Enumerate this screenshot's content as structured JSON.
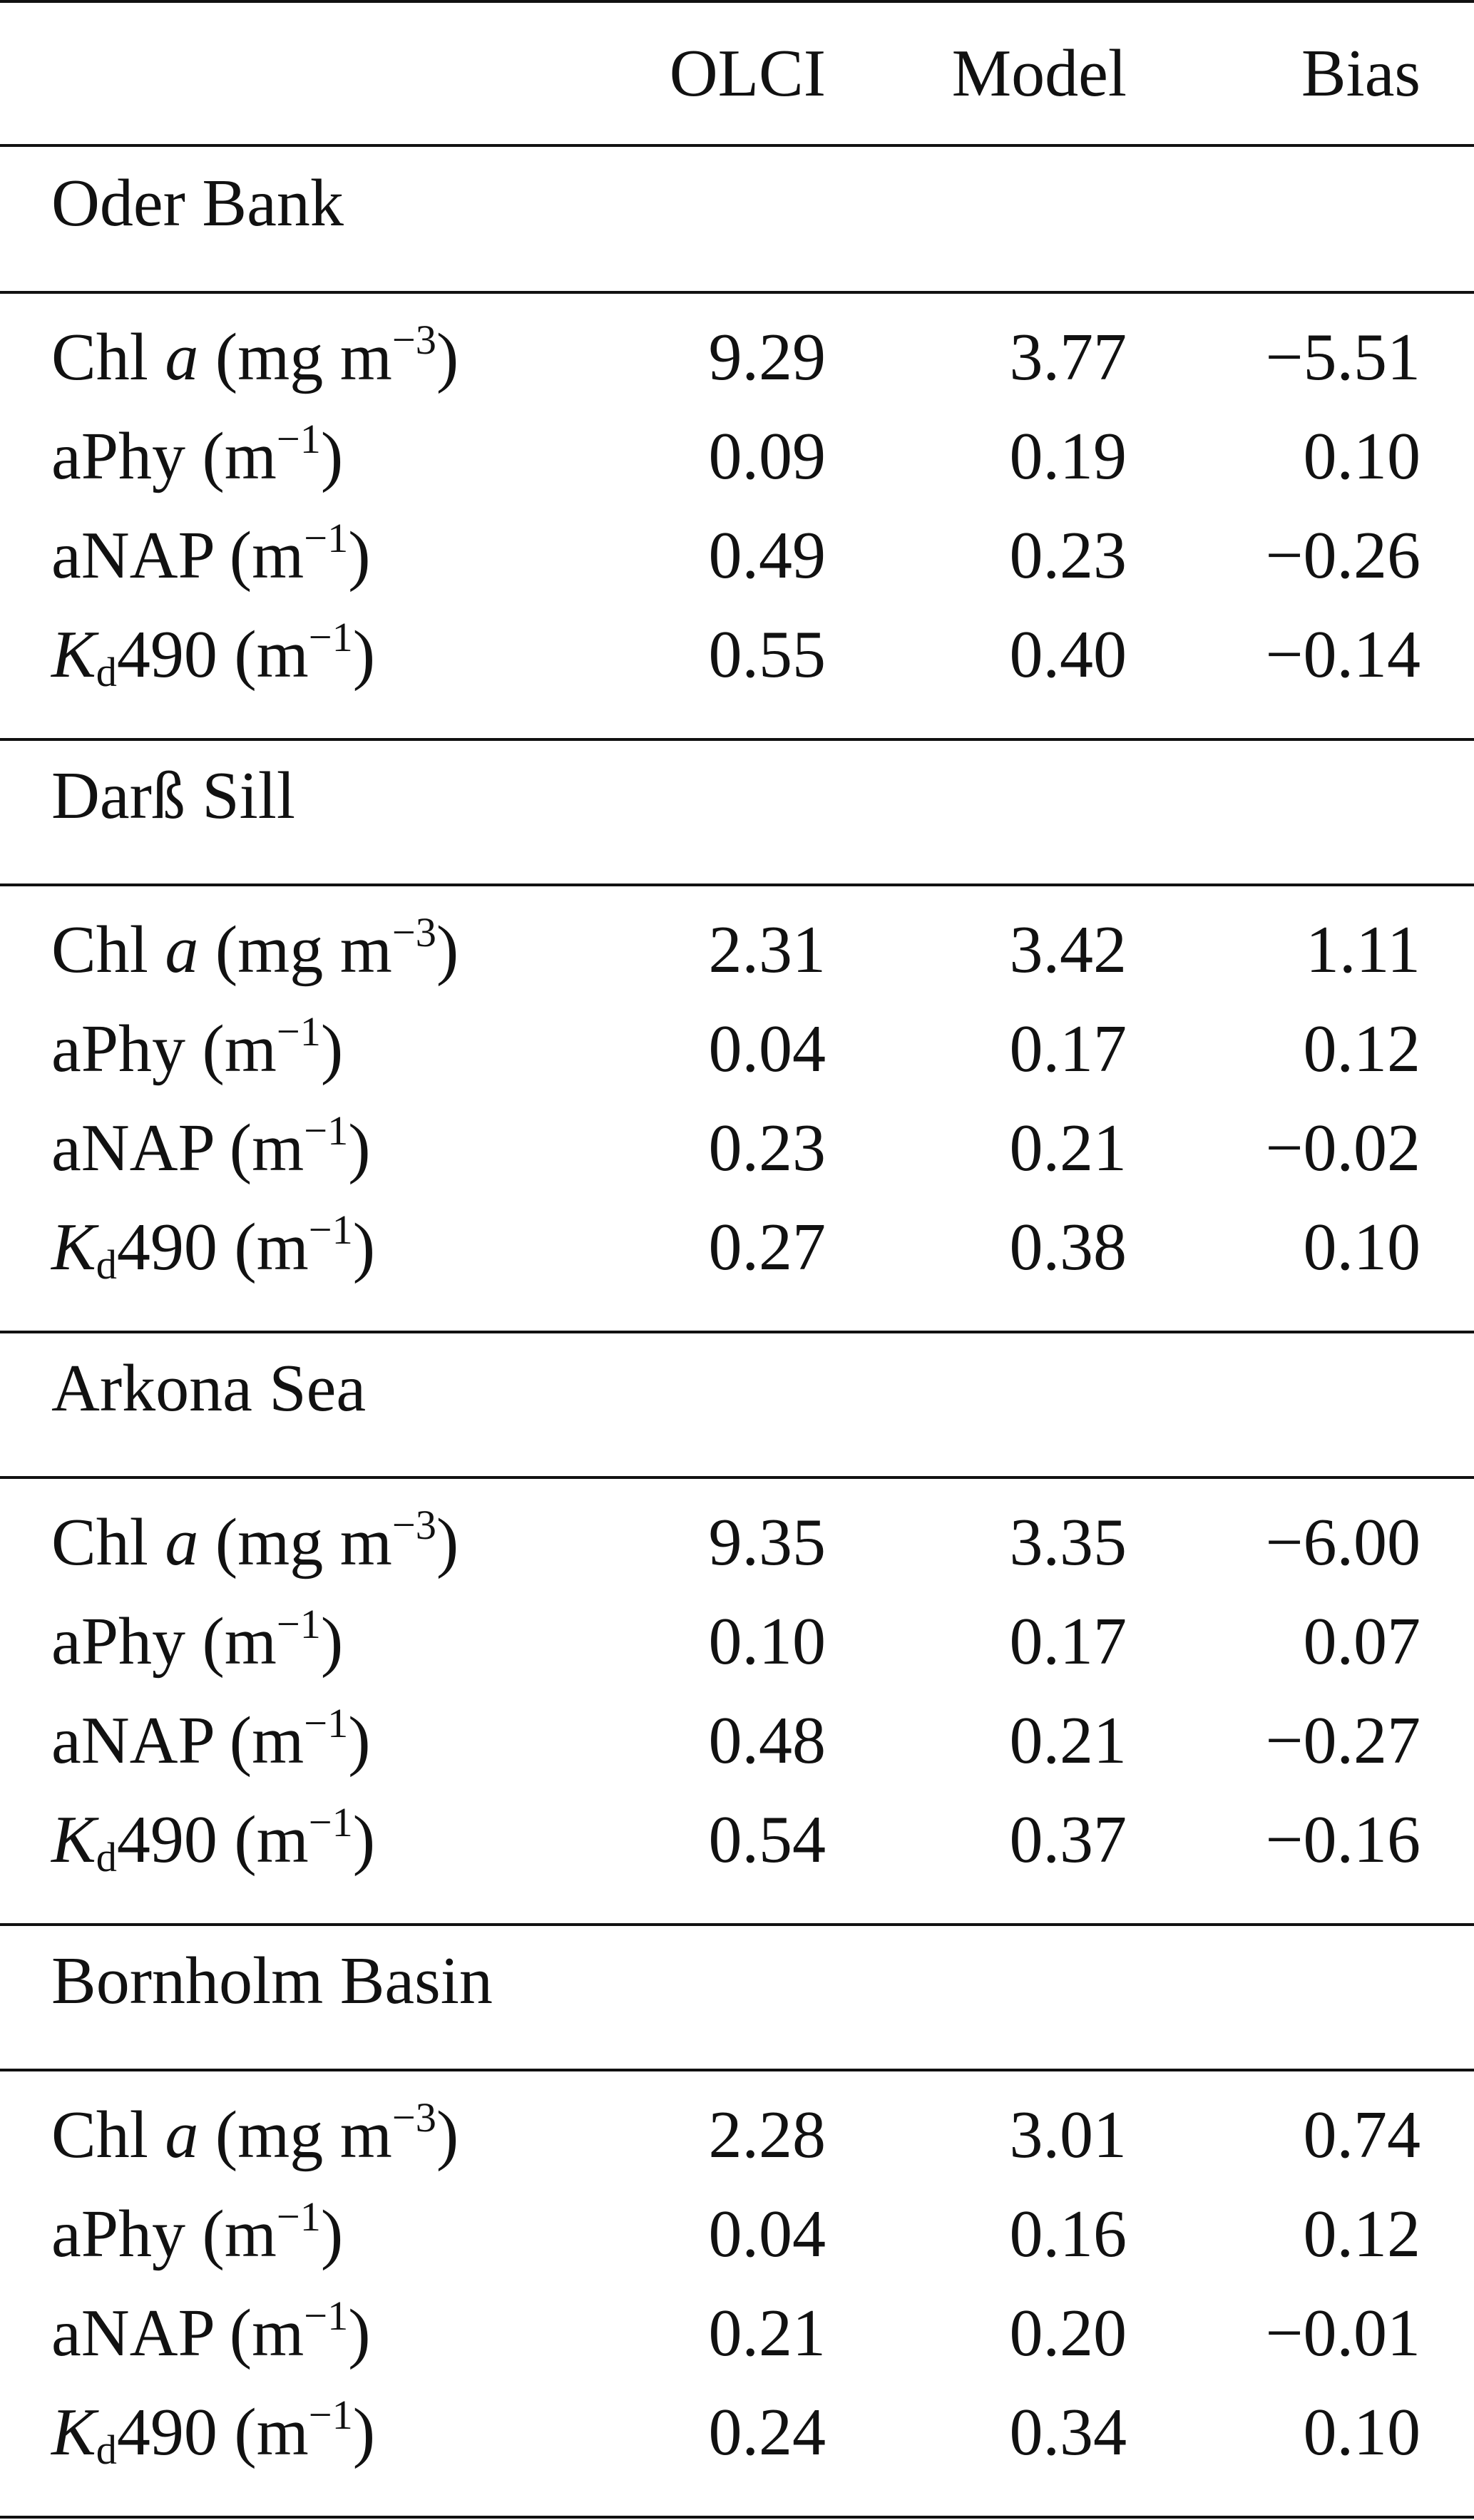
{
  "header": {
    "col1": "",
    "col2": "OLCI",
    "col3": "Model",
    "col4": "Bias"
  },
  "sections": [
    {
      "title": "Oder Bank",
      "rows": [
        {
          "param": "chl",
          "olci": "9.29",
          "model": "3.77",
          "bias": "−5.51"
        },
        {
          "param": "aphy",
          "olci": "0.09",
          "model": "0.19",
          "bias": "0.10"
        },
        {
          "param": "anap",
          "olci": "0.49",
          "model": "0.23",
          "bias": "−0.26"
        },
        {
          "param": "kd490",
          "olci": "0.55",
          "model": "0.40",
          "bias": "−0.14"
        }
      ]
    },
    {
      "title": "Darß Sill",
      "rows": [
        {
          "param": "chl",
          "olci": "2.31",
          "model": "3.42",
          "bias": "1.11"
        },
        {
          "param": "aphy",
          "olci": "0.04",
          "model": "0.17",
          "bias": "0.12"
        },
        {
          "param": "anap",
          "olci": "0.23",
          "model": "0.21",
          "bias": "−0.02"
        },
        {
          "param": "kd490",
          "olci": "0.27",
          "model": "0.38",
          "bias": "0.10"
        }
      ]
    },
    {
      "title": "Arkona Sea",
      "rows": [
        {
          "param": "chl",
          "olci": "9.35",
          "model": "3.35",
          "bias": "−6.00"
        },
        {
          "param": "aphy",
          "olci": "0.10",
          "model": "0.17",
          "bias": "0.07"
        },
        {
          "param": "anap",
          "olci": "0.48",
          "model": "0.21",
          "bias": "−0.27"
        },
        {
          "param": "kd490",
          "olci": "0.54",
          "model": "0.37",
          "bias": "−0.16"
        }
      ]
    },
    {
      "title": "Bornholm Basin",
      "rows": [
        {
          "param": "chl",
          "olci": "2.28",
          "model": "3.01",
          "bias": "0.74"
        },
        {
          "param": "aphy",
          "olci": "0.04",
          "model": "0.16",
          "bias": "0.12"
        },
        {
          "param": "anap",
          "olci": "0.21",
          "model": "0.20",
          "bias": "−0.01"
        },
        {
          "param": "kd490",
          "olci": "0.24",
          "model": "0.34",
          "bias": "0.10"
        }
      ]
    }
  ],
  "param_labels": {
    "chl": {
      "name": "Chl",
      "italic_var": "a",
      "unit_open": "(mg m",
      "exp": "−3",
      "unit_close": ")"
    },
    "aphy": {
      "name": "aPhy",
      "unit_open": "(m",
      "exp": "−1",
      "unit_close": ")"
    },
    "anap": {
      "name": "aNAP",
      "unit_open": "(m",
      "exp": "−1",
      "unit_close": ")"
    },
    "kd490": {
      "italic_var": "K",
      "sub": "d",
      "name": "490",
      "unit_open": "(m",
      "exp": "−1",
      "unit_close": ")"
    }
  },
  "colors": {
    "text": "#111111",
    "rule": "#111111",
    "background": "#ffffff"
  }
}
